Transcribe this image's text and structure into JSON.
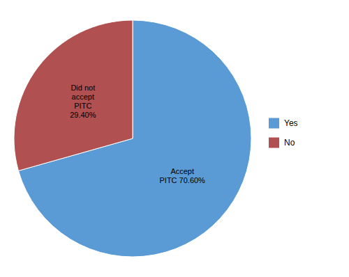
{
  "chart_data": {
    "type": "pie",
    "categories": [
      "Yes",
      "No"
    ],
    "values": [
      70.6,
      29.4
    ],
    "colors": [
      "#5B9BD5",
      "#B05050"
    ],
    "data_labels": true,
    "value_labels": [
      "Accept\nPITC 70.60%",
      "Did not\naccept\nPITC\n29.40%"
    ],
    "legend": "right"
  }
}
